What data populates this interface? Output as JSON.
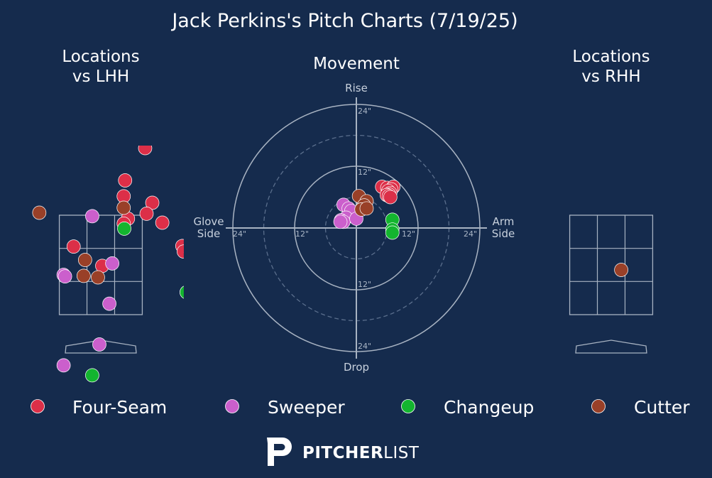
{
  "title": "Jack Perkins's Pitch Charts (7/19/25)",
  "panels": {
    "lhh_title_line1": "Locations",
    "lhh_title_line2": "vs LHH",
    "movement_title": "Movement",
    "rhh_title_line1": "Locations",
    "rhh_title_line2": "vs RHH"
  },
  "movement_axis": {
    "rise": "Rise",
    "drop": "Drop",
    "glove_line1": "Glove",
    "glove_line2": "Side",
    "arm_line1": "Arm",
    "arm_line2": "Side",
    "ring_labels": {
      "top24": "24\"",
      "top12": "12\"",
      "bottom12": "12\"",
      "bottom24": "24\"",
      "left24": "24\"",
      "left12": "12\"",
      "right12": "12\"",
      "right24": "24\""
    }
  },
  "colors": {
    "background": "#152b4d",
    "Four-Seam": "#dc2f48",
    "Sweeper": "#cb5fcc",
    "Changeup": "#13b52f",
    "Cutter": "#994028",
    "grid": "#a8b3c2"
  },
  "chart_data": [
    {
      "type": "scatter",
      "name": "locations_vs_lhh",
      "title": "Locations vs LHH",
      "xlim": [
        -2.3,
        2.9
      ],
      "ylim": [
        -0.6,
        4.9
      ],
      "strike_zone": {
        "x": [
          -1.45,
          1.45
        ],
        "y": [
          1.5,
          3.5
        ]
      },
      "series": [
        {
          "name": "Four-Seam",
          "points": [
            [
              1.55,
              4.85
            ],
            [
              0.85,
              4.2
            ],
            [
              0.8,
              3.88
            ],
            [
              1.8,
              3.75
            ],
            [
              1.6,
              3.53
            ],
            [
              2.15,
              3.35
            ],
            [
              0.95,
              3.43
            ],
            [
              0.8,
              3.33
            ],
            [
              -0.95,
              2.87
            ],
            [
              2.85,
              2.88
            ],
            [
              2.9,
              2.77
            ],
            [
              0.05,
              2.48
            ]
          ]
        },
        {
          "name": "Sweeper",
          "points": [
            [
              -0.3,
              3.48
            ],
            [
              -1.3,
              2.3
            ],
            [
              -1.25,
              2.27
            ],
            [
              0.4,
              2.53
            ],
            [
              0.3,
              1.72
            ],
            [
              -0.05,
              0.9
            ],
            [
              -1.3,
              0.48
            ]
          ]
        },
        {
          "name": "Changeup",
          "points": [
            [
              0.82,
              3.23
            ],
            [
              3.0,
              1.95
            ],
            [
              -0.3,
              0.28
            ]
          ]
        },
        {
          "name": "Cutter",
          "points": [
            [
              -2.15,
              3.55
            ],
            [
              0.8,
              3.65
            ],
            [
              -0.55,
              2.6
            ],
            [
              -0.6,
              2.28
            ],
            [
              -0.1,
              2.25
            ]
          ]
        }
      ]
    },
    {
      "type": "scatter",
      "name": "movement",
      "title": "Movement",
      "units": "inches",
      "x_axis": "Glove Side (-) to Arm Side (+)",
      "y_axis": "Drop (-) to Rise (+)",
      "rings": [
        6,
        12,
        18,
        24
      ],
      "series": [
        {
          "name": "Four-Seam",
          "points": [
            [
              5.0,
              8.0
            ],
            [
              6.0,
              7.8
            ],
            [
              7.2,
              8.0
            ],
            [
              6.8,
              7.5
            ],
            [
              6.2,
              7.2
            ],
            [
              6.6,
              6.8
            ],
            [
              6.4,
              6.5
            ],
            [
              5.9,
              6.4
            ],
            [
              6.3,
              6.2
            ],
            [
              6.6,
              6.0
            ]
          ]
        },
        {
          "name": "Sweeper",
          "points": [
            [
              -2.5,
              4.5
            ],
            [
              -1.5,
              3.8
            ],
            [
              -1.0,
              3.3
            ],
            [
              -2.0,
              2.0
            ],
            [
              -3.0,
              1.5
            ],
            [
              -2.5,
              1.2
            ],
            [
              -3.1,
              1.2
            ],
            [
              0.0,
              1.8
            ]
          ]
        },
        {
          "name": "Changeup",
          "points": [
            [
              7.0,
              1.6
            ],
            [
              7.0,
              -0.3
            ],
            [
              7.0,
              -0.9
            ]
          ]
        },
        {
          "name": "Cutter",
          "points": [
            [
              0.5,
              6.2
            ],
            [
              2.0,
              5.2
            ],
            [
              1.5,
              4.4
            ],
            [
              1.0,
              3.6
            ],
            [
              2.0,
              3.8
            ]
          ]
        }
      ]
    },
    {
      "type": "scatter",
      "name": "locations_vs_rhh",
      "title": "Locations vs RHH",
      "xlim": [
        -2.3,
        2.9
      ],
      "ylim": [
        -0.6,
        4.9
      ],
      "strike_zone": {
        "x": [
          -1.45,
          1.45
        ],
        "y": [
          1.5,
          3.5
        ]
      },
      "series": [
        {
          "name": "Cutter",
          "points": [
            [
              0.35,
              2.4
            ]
          ]
        }
      ]
    }
  ],
  "legend": [
    "Four-Seam",
    "Sweeper",
    "Changeup",
    "Cutter"
  ],
  "brand": {
    "bold": "PITCHER",
    "light": "LIST"
  }
}
